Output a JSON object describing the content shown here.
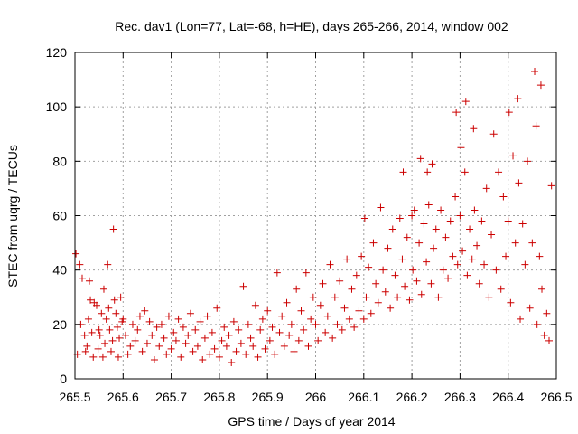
{
  "chart_data": {
    "type": "scatter",
    "title": "Rec. dav1 (Lon=77, Lat=-68, h=HE), days 265-266, 2014, window 002",
    "xlabel": "GPS time / Days of year 2014",
    "ylabel": "STEC from uqrg / TECUs",
    "xlim": [
      265.5,
      266.5
    ],
    "ylim": [
      0,
      120
    ],
    "x_ticks": [
      265.5,
      265.6,
      265.7,
      265.8,
      265.9,
      266.0,
      266.1,
      266.2,
      266.3,
      266.4,
      266.5
    ],
    "x_tick_labels": [
      "265.5",
      "265.6",
      "265.7",
      "265.8",
      "265.9",
      "266",
      "266.1",
      "266.2",
      "266.3",
      "266.4",
      "266.5"
    ],
    "y_ticks": [
      0,
      20,
      40,
      60,
      80,
      100,
      120
    ],
    "y_tick_labels": [
      "0",
      "20",
      "40",
      "60",
      "80",
      "100",
      "120"
    ],
    "grid": true,
    "marker": "+",
    "color": "#cc0000",
    "points": [
      [
        265.502,
        46
      ],
      [
        265.505,
        9
      ],
      [
        265.51,
        42
      ],
      [
        265.512,
        20
      ],
      [
        265.515,
        37
      ],
      [
        265.52,
        16
      ],
      [
        265.522,
        10
      ],
      [
        265.525,
        12
      ],
      [
        265.528,
        22
      ],
      [
        265.53,
        36
      ],
      [
        265.532,
        29
      ],
      [
        265.535,
        17
      ],
      [
        265.538,
        8
      ],
      [
        265.54,
        28
      ],
      [
        265.545,
        27
      ],
      [
        265.548,
        11
      ],
      [
        265.55,
        18
      ],
      [
        265.552,
        16
      ],
      [
        265.555,
        24
      ],
      [
        265.558,
        8
      ],
      [
        265.56,
        33
      ],
      [
        265.562,
        13
      ],
      [
        265.565,
        22
      ],
      [
        265.568,
        42
      ],
      [
        265.57,
        26
      ],
      [
        265.572,
        18
      ],
      [
        265.575,
        10
      ],
      [
        265.578,
        14
      ],
      [
        265.58,
        55
      ],
      [
        265.582,
        29
      ],
      [
        265.585,
        24
      ],
      [
        265.588,
        19
      ],
      [
        265.59,
        8
      ],
      [
        265.592,
        15
      ],
      [
        265.595,
        30
      ],
      [
        265.598,
        21
      ],
      [
        265.6,
        22
      ],
      [
        265.605,
        16
      ],
      [
        265.61,
        9
      ],
      [
        265.615,
        12
      ],
      [
        265.62,
        20
      ],
      [
        265.625,
        14
      ],
      [
        265.63,
        18
      ],
      [
        265.635,
        23
      ],
      [
        265.64,
        10
      ],
      [
        265.645,
        25
      ],
      [
        265.65,
        13
      ],
      [
        265.655,
        21
      ],
      [
        265.66,
        16
      ],
      [
        265.665,
        7
      ],
      [
        265.67,
        19
      ],
      [
        265.675,
        12
      ],
      [
        265.68,
        20
      ],
      [
        265.685,
        15
      ],
      [
        265.69,
        9
      ],
      [
        265.695,
        23
      ],
      [
        265.7,
        11
      ],
      [
        265.705,
        17
      ],
      [
        265.71,
        14
      ],
      [
        265.715,
        22
      ],
      [
        265.72,
        8
      ],
      [
        265.725,
        19
      ],
      [
        265.73,
        13
      ],
      [
        265.735,
        16
      ],
      [
        265.74,
        24
      ],
      [
        265.745,
        10
      ],
      [
        265.75,
        18
      ],
      [
        265.755,
        12
      ],
      [
        265.76,
        21
      ],
      [
        265.765,
        7
      ],
      [
        265.77,
        15
      ],
      [
        265.775,
        23
      ],
      [
        265.78,
        9
      ],
      [
        265.785,
        17
      ],
      [
        265.79,
        11
      ],
      [
        265.795,
        26
      ],
      [
        265.8,
        8
      ],
      [
        265.805,
        14
      ],
      [
        265.81,
        19
      ],
      [
        265.815,
        12
      ],
      [
        265.82,
        16
      ],
      [
        265.825,
        6
      ],
      [
        265.83,
        21
      ],
      [
        265.835,
        10
      ],
      [
        265.84,
        18
      ],
      [
        265.845,
        13
      ],
      [
        265.85,
        34
      ],
      [
        265.855,
        9
      ],
      [
        265.86,
        20
      ],
      [
        265.865,
        15
      ],
      [
        265.87,
        12
      ],
      [
        265.875,
        27
      ],
      [
        265.88,
        8
      ],
      [
        265.885,
        18
      ],
      [
        265.89,
        22
      ],
      [
        265.895,
        11
      ],
      [
        265.9,
        25
      ],
      [
        265.905,
        14
      ],
      [
        265.91,
        19
      ],
      [
        265.915,
        9
      ],
      [
        265.92,
        39
      ],
      [
        265.925,
        17
      ],
      [
        265.93,
        23
      ],
      [
        265.935,
        12
      ],
      [
        265.94,
        28
      ],
      [
        265.945,
        16
      ],
      [
        265.95,
        20
      ],
      [
        265.955,
        10
      ],
      [
        265.96,
        33
      ],
      [
        265.965,
        14
      ],
      [
        265.97,
        25
      ],
      [
        265.975,
        18
      ],
      [
        265.98,
        39
      ],
      [
        265.985,
        12
      ],
      [
        265.99,
        22
      ],
      [
        265.995,
        30
      ],
      [
        266.0,
        20
      ],
      [
        266.005,
        14
      ],
      [
        266.01,
        27
      ],
      [
        266.015,
        35
      ],
      [
        266.02,
        17
      ],
      [
        266.025,
        23
      ],
      [
        266.03,
        42
      ],
      [
        266.035,
        15
      ],
      [
        266.04,
        30
      ],
      [
        266.045,
        20
      ],
      [
        266.05,
        36
      ],
      [
        266.055,
        18
      ],
      [
        266.06,
        26
      ],
      [
        266.065,
        44
      ],
      [
        266.07,
        22
      ],
      [
        266.075,
        33
      ],
      [
        266.08,
        19
      ],
      [
        266.085,
        38
      ],
      [
        266.09,
        25
      ],
      [
        266.095,
        45
      ],
      [
        266.1,
        22
      ],
      [
        266.102,
        59
      ],
      [
        266.105,
        30
      ],
      [
        266.11,
        41
      ],
      [
        266.115,
        24
      ],
      [
        266.12,
        50
      ],
      [
        266.125,
        35
      ],
      [
        266.13,
        28
      ],
      [
        266.135,
        63
      ],
      [
        266.14,
        40
      ],
      [
        266.145,
        32
      ],
      [
        266.15,
        48
      ],
      [
        266.155,
        26
      ],
      [
        266.16,
        55
      ],
      [
        266.165,
        38
      ],
      [
        266.17,
        30
      ],
      [
        266.175,
        59
      ],
      [
        266.18,
        44
      ],
      [
        266.182,
        76
      ],
      [
        266.185,
        34
      ],
      [
        266.19,
        52
      ],
      [
        266.195,
        29
      ],
      [
        266.2,
        60
      ],
      [
        266.202,
        40
      ],
      [
        266.205,
        62
      ],
      [
        266.21,
        36
      ],
      [
        266.215,
        50
      ],
      [
        266.218,
        81
      ],
      [
        266.22,
        31
      ],
      [
        266.225,
        57
      ],
      [
        266.23,
        43
      ],
      [
        266.232,
        76
      ],
      [
        266.235,
        64
      ],
      [
        266.24,
        35
      ],
      [
        266.242,
        79
      ],
      [
        266.245,
        48
      ],
      [
        266.25,
        55
      ],
      [
        266.255,
        30
      ],
      [
        266.26,
        62
      ],
      [
        266.265,
        40
      ],
      [
        266.27,
        52
      ],
      [
        266.275,
        37
      ],
      [
        266.28,
        58
      ],
      [
        266.285,
        45
      ],
      [
        266.29,
        67
      ],
      [
        266.292,
        98
      ],
      [
        266.295,
        42
      ],
      [
        266.3,
        60
      ],
      [
        266.302,
        85
      ],
      [
        266.305,
        47
      ],
      [
        266.31,
        76
      ],
      [
        266.312,
        102
      ],
      [
        266.315,
        38
      ],
      [
        266.32,
        55
      ],
      [
        266.325,
        44
      ],
      [
        266.328,
        92
      ],
      [
        266.33,
        62
      ],
      [
        266.335,
        49
      ],
      [
        266.34,
        35
      ],
      [
        266.345,
        58
      ],
      [
        266.35,
        42
      ],
      [
        266.355,
        70
      ],
      [
        266.36,
        30
      ],
      [
        266.365,
        53
      ],
      [
        266.37,
        90
      ],
      [
        266.375,
        40
      ],
      [
        266.38,
        76
      ],
      [
        266.385,
        33
      ],
      [
        266.39,
        67
      ],
      [
        266.395,
        45
      ],
      [
        266.4,
        58
      ],
      [
        266.402,
        98
      ],
      [
        266.405,
        28
      ],
      [
        266.41,
        82
      ],
      [
        266.415,
        50
      ],
      [
        266.42,
        103
      ],
      [
        266.422,
        72
      ],
      [
        266.425,
        22
      ],
      [
        266.43,
        57
      ],
      [
        266.435,
        42
      ],
      [
        266.44,
        80
      ],
      [
        266.445,
        26
      ],
      [
        266.45,
        50
      ],
      [
        266.455,
        113
      ],
      [
        266.458,
        93
      ],
      [
        266.46,
        20
      ],
      [
        266.465,
        45
      ],
      [
        266.468,
        108
      ],
      [
        266.47,
        33
      ],
      [
        266.475,
        16
      ],
      [
        266.48,
        24
      ],
      [
        266.485,
        14
      ],
      [
        266.49,
        71
      ]
    ]
  }
}
